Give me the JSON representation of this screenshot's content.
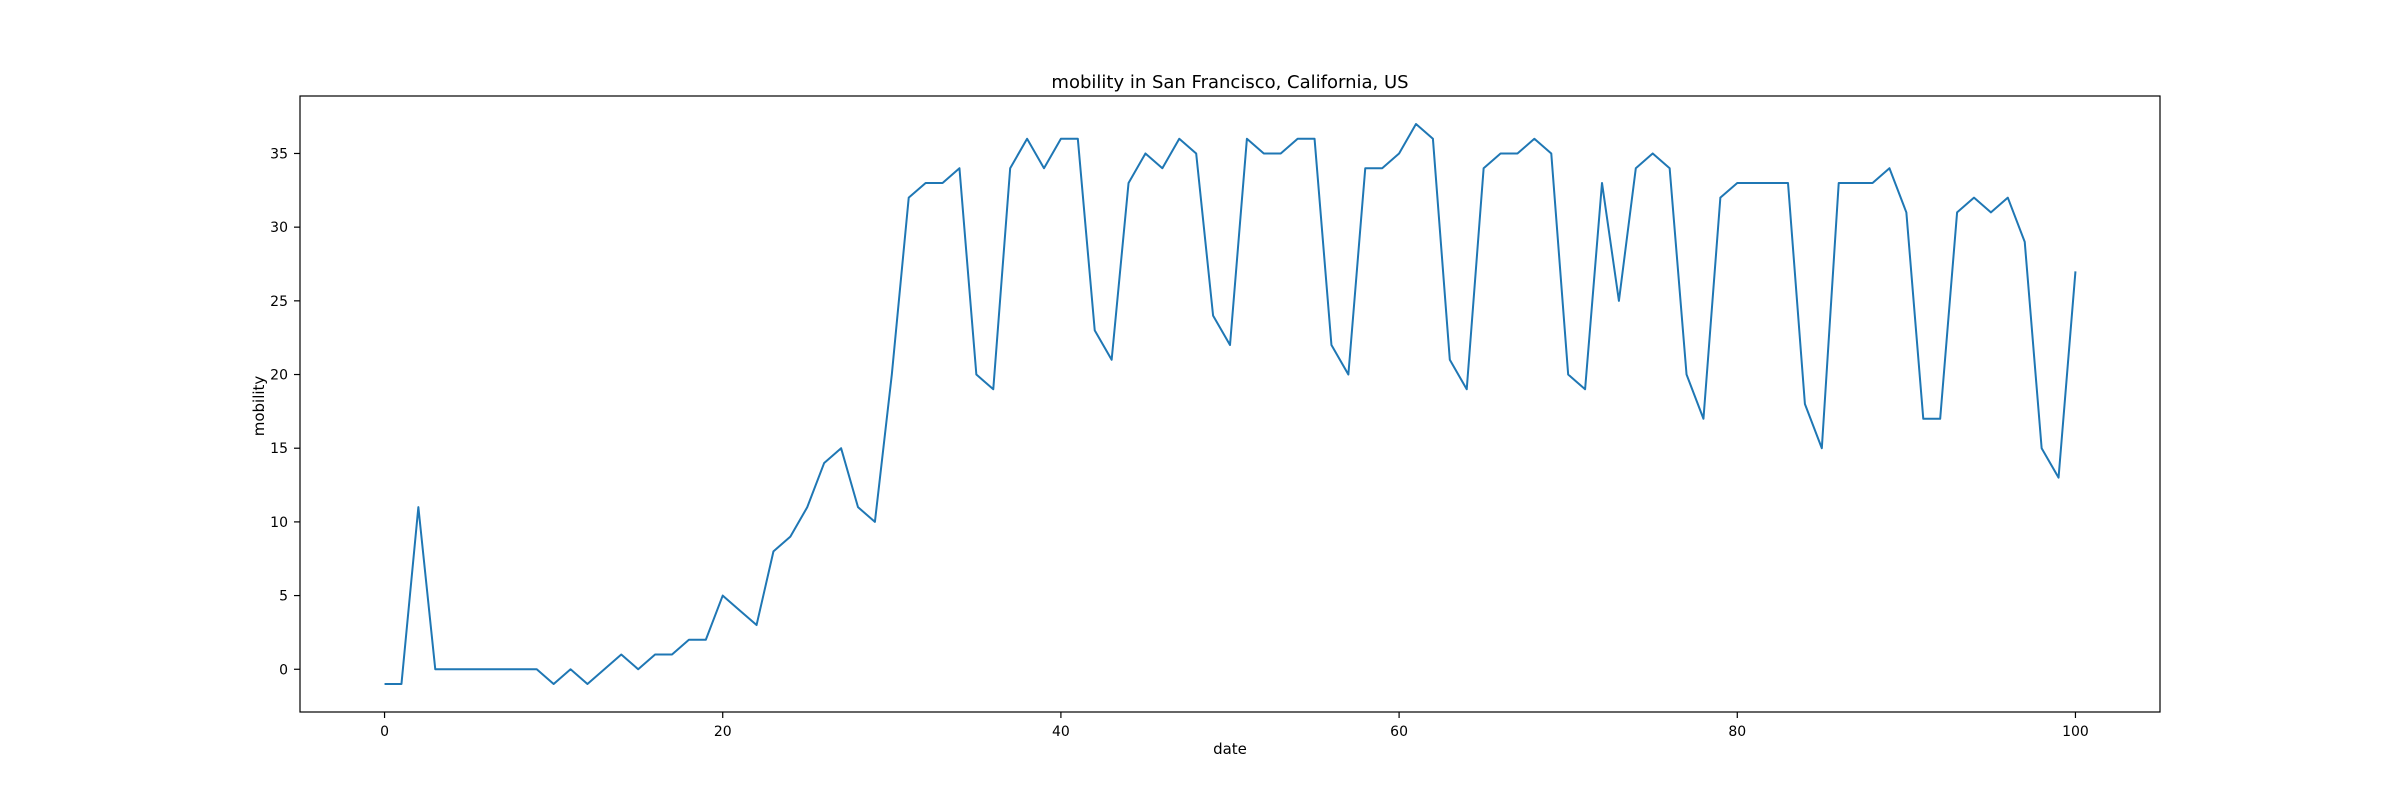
{
  "chart_data": {
    "type": "line",
    "title": "mobility in San Francisco, California, US",
    "xlabel": "date",
    "ylabel": "mobility",
    "xlim": [
      -5,
      105
    ],
    "ylim": [
      -2.9,
      38.9
    ],
    "xticks": [
      0,
      20,
      40,
      60,
      80,
      100
    ],
    "yticks": [
      0,
      5,
      10,
      15,
      20,
      25,
      30,
      35
    ],
    "grid": false,
    "legend": "none",
    "series": [
      {
        "color": "#1f77b4",
        "x": [
          0,
          1,
          2,
          3,
          4,
          5,
          6,
          7,
          8,
          9,
          10,
          11,
          12,
          13,
          14,
          15,
          16,
          17,
          18,
          19,
          20,
          21,
          22,
          23,
          24,
          25,
          26,
          27,
          28,
          29,
          30,
          31,
          32,
          33,
          34,
          35,
          36,
          37,
          38,
          39,
          40,
          41,
          42,
          43,
          44,
          45,
          46,
          47,
          48,
          49,
          50,
          51,
          52,
          53,
          54,
          55,
          56,
          57,
          58,
          59,
          60,
          61,
          62,
          63,
          64,
          65,
          66,
          67,
          68,
          69,
          70,
          71,
          72,
          73,
          74,
          75,
          76,
          77,
          78,
          79,
          80,
          81,
          82,
          83,
          84,
          85,
          86,
          87,
          88,
          89,
          90,
          91,
          92,
          93,
          94,
          95,
          96,
          97,
          98,
          99,
          100
        ],
        "y": [
          -1,
          -1,
          11,
          0,
          0,
          0,
          0,
          0,
          0,
          0,
          -1,
          0,
          -1,
          0,
          1,
          0,
          1,
          1,
          2,
          2,
          5,
          4,
          3,
          8,
          9,
          11,
          14,
          15,
          11,
          10,
          20,
          32,
          33,
          33,
          34,
          20,
          19,
          34,
          36,
          34,
          36,
          36,
          23,
          21,
          33,
          35,
          34,
          36,
          35,
          24,
          22,
          36,
          35,
          35,
          36,
          36,
          22,
          20,
          34,
          34,
          35,
          37,
          36,
          21,
          19,
          34,
          35,
          35,
          36,
          35,
          20,
          19,
          33,
          25,
          34,
          35,
          34,
          20,
          17,
          32,
          33,
          33,
          33,
          33,
          18,
          15,
          33,
          33,
          33,
          34,
          31,
          17,
          17,
          31,
          32,
          31,
          32,
          29,
          15,
          13,
          27
        ]
      }
    ]
  }
}
